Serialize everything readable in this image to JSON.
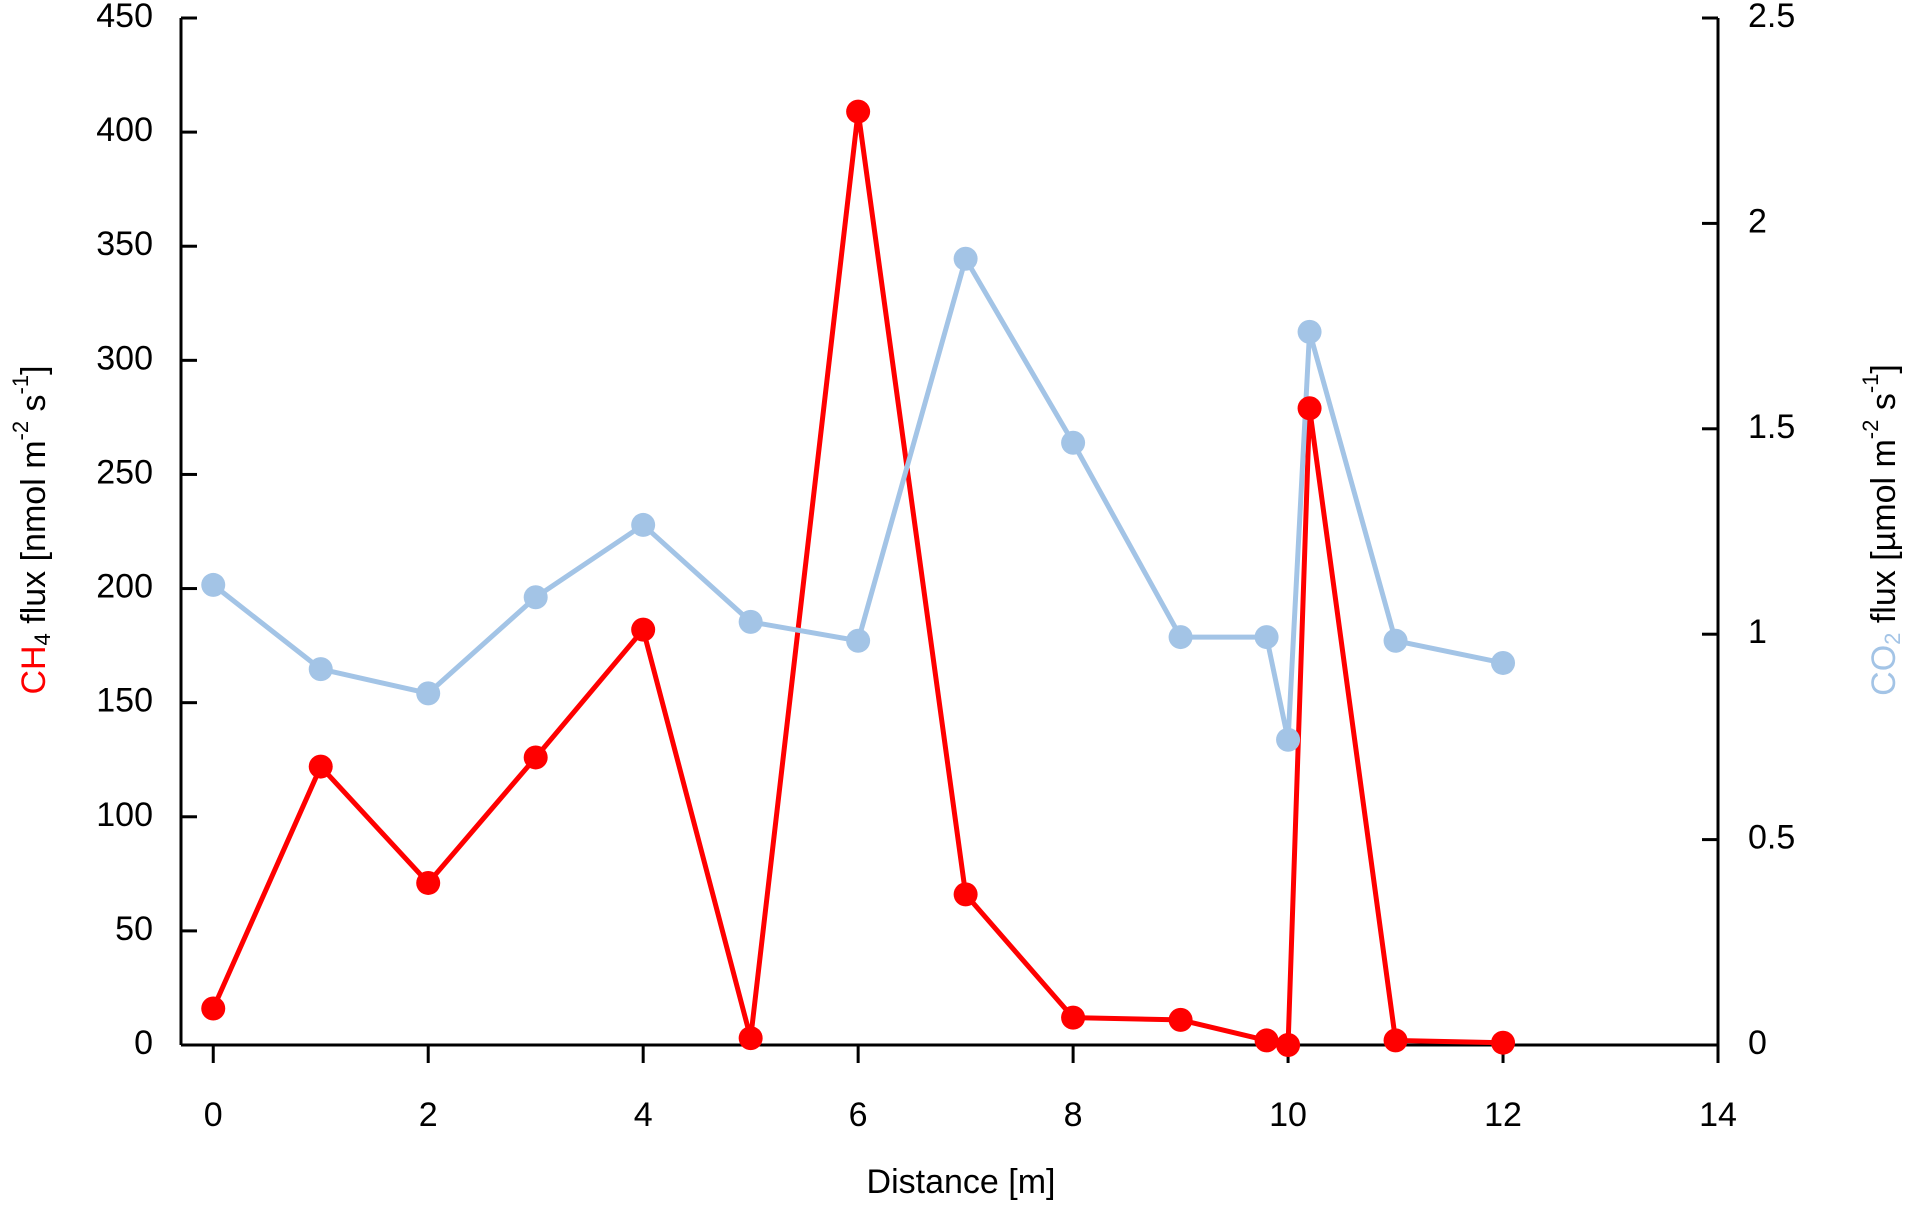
{
  "chart_data": {
    "type": "line",
    "x": [
      0,
      1,
      2,
      3,
      4,
      5,
      6,
      7,
      8,
      9,
      9.8,
      10,
      10.2,
      11,
      12
    ],
    "series": [
      {
        "name": "CH4",
        "color": "#ff0000",
        "values": [
          16,
          122,
          71,
          126,
          182,
          3,
          409,
          66,
          12,
          11,
          2,
          0,
          279,
          2,
          1
        ]
      },
      {
        "name": "CO2",
        "color": "#a3c4e6",
        "axis": "y2",
        "values": [
          1.12,
          0.915,
          0.856,
          1.09,
          1.266,
          1.03,
          0.984,
          1.914,
          1.466,
          0.993,
          0.993,
          0.743,
          1.736,
          0.984,
          0.93
        ]
      }
    ],
    "xlabel": "Distance [m]",
    "ylabel": [
      "CH",
      "4",
      " flux [nmol m",
      "-2",
      " s",
      "-1",
      "]"
    ],
    "y2label": [
      "CO",
      "2",
      " flux [µmol m",
      "-2",
      " s",
      "-1",
      "]"
    ],
    "xlim": [
      -0.3,
      14
    ],
    "xticks": [
      0,
      2,
      4,
      6,
      8,
      10,
      12,
      14
    ],
    "ylim": [
      0,
      450
    ],
    "yticks": [
      0,
      50,
      100,
      150,
      200,
      250,
      300,
      350,
      400,
      450
    ],
    "y2lim": [
      0,
      2.5
    ],
    "y2ticks": [
      0,
      0.5,
      1,
      1.5,
      2,
      2.5
    ]
  }
}
